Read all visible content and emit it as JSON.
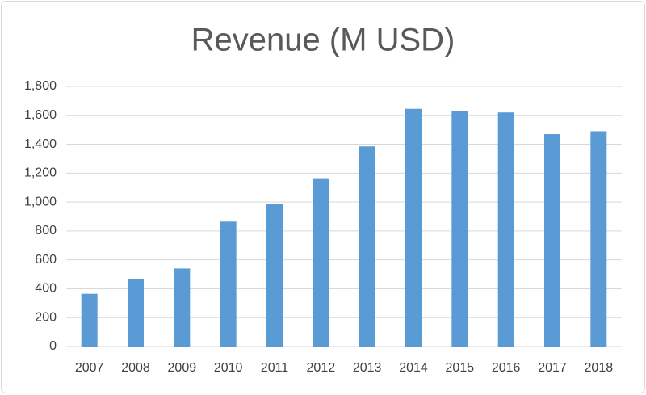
{
  "chart_data": {
    "type": "bar",
    "title": "Revenue (M USD)",
    "categories": [
      "2007",
      "2008",
      "2009",
      "2010",
      "2011",
      "2012",
      "2013",
      "2014",
      "2015",
      "2016",
      "2017",
      "2018"
    ],
    "values": [
      365,
      465,
      540,
      865,
      985,
      1165,
      1385,
      1645,
      1630,
      1620,
      1470,
      1490
    ],
    "color": "#5b9bd5",
    "ylim": [
      0,
      1800
    ],
    "yticks": [
      0,
      200,
      400,
      600,
      800,
      {
        "value": 1000,
        "label": "1,000"
      },
      {
        "value": 1200,
        "label": "1,200"
      },
      {
        "value": 1400,
        "label": "1,400"
      },
      {
        "value": 1600,
        "label": "1,600"
      },
      {
        "value": 1800,
        "label": "1,800"
      }
    ],
    "grid": true
  }
}
